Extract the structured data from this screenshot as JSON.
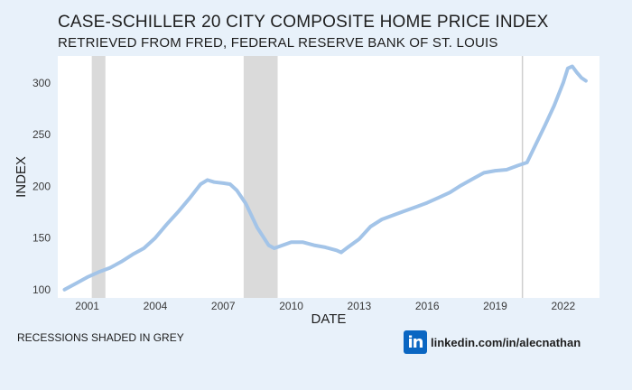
{
  "chart_data": {
    "type": "line",
    "title": "CASE-SCHILLER 20 CITY COMPOSITE HOME PRICE INDEX",
    "subtitle": "RETRIEVED FROM FRED, FEDERAL RESERVE BANK OF ST. LOUIS",
    "xlabel": "DATE",
    "ylabel": "INDEX",
    "xlim": [
      1999.7,
      2023.6
    ],
    "ylim": [
      92,
      326
    ],
    "x_ticks": [
      2001,
      2004,
      2007,
      2010,
      2013,
      2016,
      2019,
      2022
    ],
    "y_ticks": [
      100,
      150,
      200,
      250,
      300
    ],
    "line_color": "#a3c4e8",
    "recession_color": "#dadada",
    "recessions": [
      [
        2001.2,
        2001.8
      ],
      [
        2007.9,
        2009.4
      ]
    ],
    "vline": {
      "x": 2020.2,
      "color": "#cfcfcf"
    },
    "series": [
      {
        "x": [
          2000.0,
          2000.5,
          2001.0,
          2001.5,
          2002.0,
          2002.5,
          2003.0,
          2003.5,
          2004.0,
          2004.5,
          2005.0,
          2005.5,
          2006.0,
          2006.3,
          2006.6,
          2007.0,
          2007.3,
          2007.6,
          2008.0,
          2008.5,
          2009.0,
          2009.25,
          2009.5,
          2010.0,
          2010.5,
          2011.0,
          2011.5,
          2012.0,
          2012.2,
          2012.5,
          2013.0,
          2013.5,
          2014.0,
          2014.5,
          2015.0,
          2015.5,
          2016.0,
          2016.5,
          2017.0,
          2017.5,
          2018.0,
          2018.5,
          2019.0,
          2019.5,
          2020.0,
          2020.4,
          2020.8,
          2021.2,
          2021.6,
          2022.0,
          2022.2,
          2022.4,
          2022.6,
          2022.8,
          2023.0
        ],
        "y": [
          100,
          106,
          112,
          117,
          121,
          127,
          134,
          140,
          150,
          163,
          175,
          188,
          202,
          206,
          204,
          203,
          202,
          196,
          183,
          160,
          143,
          140,
          142,
          146,
          146,
          143,
          141,
          138,
          136,
          141,
          149,
          161,
          168,
          172,
          176,
          180,
          184,
          189,
          194,
          201,
          207,
          213,
          215,
          216,
          220,
          223,
          241,
          259,
          278,
          300,
          314,
          316,
          310,
          305,
          302
        ]
      }
    ]
  },
  "caption": "RECESSIONS SHADED IN GREY",
  "linkedin": {
    "logo": "in",
    "url": "linkedin.com/in/alecnathan"
  }
}
